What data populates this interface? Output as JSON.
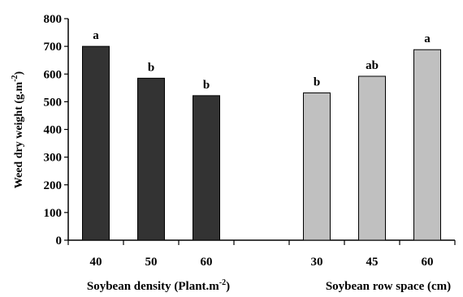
{
  "chart_data": {
    "type": "bar",
    "ylabel": "Weed dry weight (g.m",
    "ylabel_sup": "-2",
    "ylabel_close": ")",
    "ylim": [
      0,
      800
    ],
    "yticks": [
      0,
      100,
      200,
      300,
      400,
      500,
      600,
      700,
      800
    ],
    "grid": false,
    "groups": [
      {
        "title": "Soybean density (Plant.m",
        "title_sup": "-2",
        "title_close": ")",
        "color": "#333333",
        "categories": [
          "40",
          "50",
          "60"
        ],
        "values": [
          700,
          585,
          522
        ],
        "labels": [
          "a",
          "b",
          "b"
        ]
      },
      {
        "title": "Soybean row space (cm)",
        "title_sup": "",
        "title_close": "",
        "color": "#c0c0c0",
        "categories": [
          "30",
          "45",
          "60"
        ],
        "values": [
          532,
          592,
          688
        ],
        "labels": [
          "b",
          "ab",
          "a"
        ]
      }
    ]
  }
}
